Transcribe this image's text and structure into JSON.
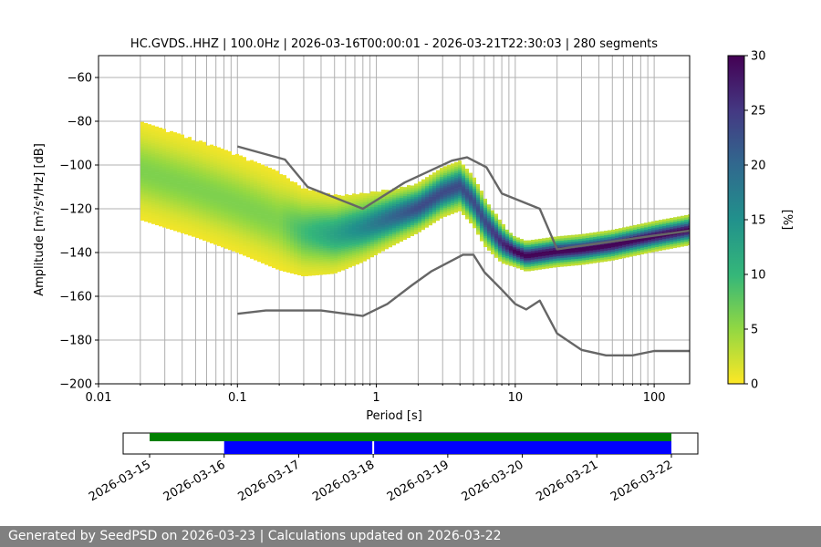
{
  "chart_data": [
    {
      "type": "heatmap",
      "title": "HC.GVDS..HHZ | 100.0Hz | 2026-03-16T00:00:01 - 2026-03-21T22:30:03 | 280 segments",
      "xlabel": "Period [s]",
      "ylabel": "Amplitude [m²/s⁴/Hz] [dB]",
      "x_scale": "log",
      "xlim": [
        0.01,
        180
      ],
      "x_tick_labels": [
        "0.01",
        "0.1",
        "1",
        "10",
        "100"
      ],
      "ylim": [
        -200,
        -50
      ],
      "y_ticks": [
        -60,
        -80,
        -100,
        -120,
        -140,
        -160,
        -180,
        -200
      ],
      "y_tick_labels": [
        "−60",
        "−80",
        "−100",
        "−120",
        "−140",
        "−160",
        "−180",
        "−200"
      ],
      "grid": true,
      "colorbar": {
        "label": "[%]",
        "range": [
          0,
          30
        ],
        "ticks": [
          "0",
          "5",
          "10",
          "15",
          "20",
          "25",
          "30"
        ],
        "colormap": "viridis_r"
      },
      "psd_density_ridge": {
        "period_s": [
          0.02,
          0.05,
          0.1,
          0.2,
          0.3,
          0.5,
          0.8,
          1.2,
          2,
          3,
          4,
          5,
          6,
          8,
          10,
          12,
          20,
          30,
          50,
          100,
          180
        ],
        "amplitude_db": [
          -103,
          -111,
          -118,
          -126,
          -131,
          -132,
          -129,
          -125,
          -120,
          -113,
          -110,
          -117,
          -126,
          -136,
          -140,
          -142,
          -140,
          -139,
          -137,
          -133,
          -130
        ],
        "spread_db": [
          10,
          10,
          10,
          10,
          9,
          8,
          7,
          6,
          5,
          5,
          5,
          5,
          5,
          4,
          3,
          3,
          3,
          3,
          3,
          3,
          3
        ]
      },
      "series": [
        {
          "name": "",
          "x": [
            0.1,
            0.22,
            0.32,
            0.8,
            1.6,
            3.5,
            4.5,
            6.2,
            8,
            15,
            20,
            180
          ],
          "y": [
            -91.5,
            -97.5,
            -110,
            -120,
            -108,
            -98,
            -96.5,
            -101,
            -113,
            -120,
            -138.5,
            -130
          ],
          "color": "#666666"
        },
        {
          "name": "",
          "x": [
            0.1,
            0.16,
            0.25,
            0.4,
            0.8,
            1.2,
            1.8,
            2.5,
            4.2,
            5,
            6,
            8,
            10,
            12,
            15,
            20,
            30,
            45,
            70,
            100,
            180
          ],
          "y": [
            -168,
            -166.5,
            -166.5,
            -166.5,
            -169,
            -163.5,
            -155,
            -148.5,
            -141,
            -141,
            -149,
            -157,
            -163.5,
            -166,
            -162,
            -177,
            -184.5,
            -187,
            -187,
            -185,
            -185
          ],
          "color": "#666666"
        }
      ]
    },
    {
      "type": "timeline",
      "tick_labels": [
        "2026-03-15",
        "2026-03-16",
        "2026-03-17",
        "2026-03-18",
        "2026-03-19",
        "2026-03-20",
        "2026-03-21",
        "2026-03-22"
      ],
      "tracks": [
        {
          "color": "#008000",
          "segments": [
            [
              "2026-03-15",
              "2026-03-22"
            ]
          ]
        },
        {
          "color": "#0000ff",
          "segments": [
            [
              "2026-03-16",
              "2026-03-18"
            ],
            [
              "2026-03-18",
              "2026-03-22"
            ]
          ]
        }
      ]
    }
  ],
  "footer": {
    "text": "Generated by SeedPSD on 2026-03-23 | Calculations updated on 2026-03-22"
  }
}
